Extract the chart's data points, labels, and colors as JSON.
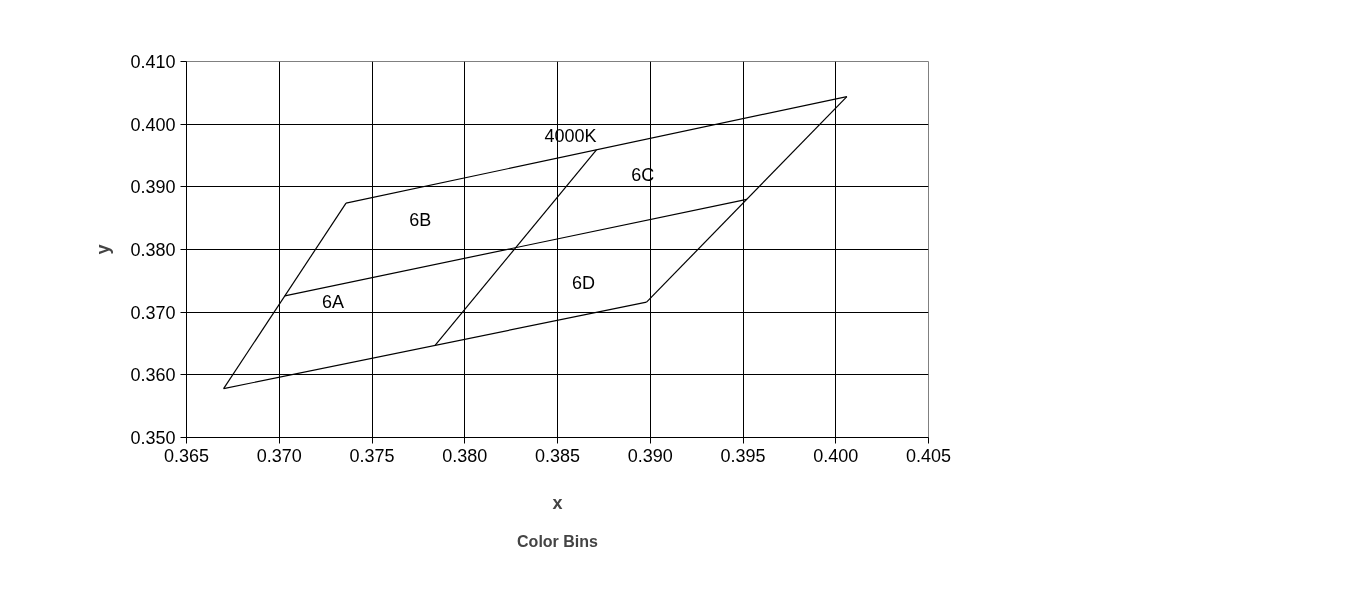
{
  "chart_data": {
    "type": "line",
    "xlabel": "x",
    "ylabel": "y",
    "series": [
      {
        "color": "#000000",
        "x": [
          0.367,
          0.3736
        ],
        "values": [
          0.3578,
          0.3874
        ]
      },
      {
        "color": "#000000",
        "x": [
          0.3736,
          0.4006
        ],
        "values": [
          0.3874,
          0.4044
        ]
      },
      {
        "color": "#000000",
        "x": [
          0.3898,
          0.4006
        ],
        "values": [
          0.3716,
          0.4044
        ]
      },
      {
        "color": "#000000",
        "x": [
          0.367,
          0.3898
        ],
        "values": [
          0.3578,
          0.3716
        ]
      },
      {
        "color": "#000000",
        "x": [
          0.3703,
          0.3952
        ],
        "values": [
          0.3726,
          0.388
        ]
      },
      {
        "color": "#000000",
        "x": [
          0.3784,
          0.3871
        ],
        "values": [
          0.3647,
          0.3959
        ]
      }
    ],
    "xlim": [
      0.365,
      0.405
    ],
    "ylim": [
      0.35,
      0.41
    ],
    "xticks": [
      0.365,
      {
        "value": 0.37,
        "label": "0.370"
      },
      0.375,
      {
        "value": 0.38,
        "label": "0.380"
      },
      0.385,
      {
        "value": 0.39,
        "label": "0.390"
      },
      0.395,
      {
        "value": 0.4,
        "label": "0.400"
      },
      0.405
    ],
    "yticks": [
      {
        "value": 0.35,
        "label": "0.350"
      },
      {
        "value": 0.36,
        "label": "0.360"
      },
      {
        "value": 0.37,
        "label": "0.370"
      },
      {
        "value": 0.38,
        "label": "0.380"
      },
      {
        "value": 0.39,
        "label": "0.390"
      },
      {
        "value": 0.4,
        "label": "0.400"
      },
      {
        "value": 0.41,
        "label": "0.410"
      }
    ],
    "grid": true,
    "annotations": [
      "4000K",
      "6C",
      "6B",
      "6D",
      "6A",
      "Color Bins"
    ]
  }
}
